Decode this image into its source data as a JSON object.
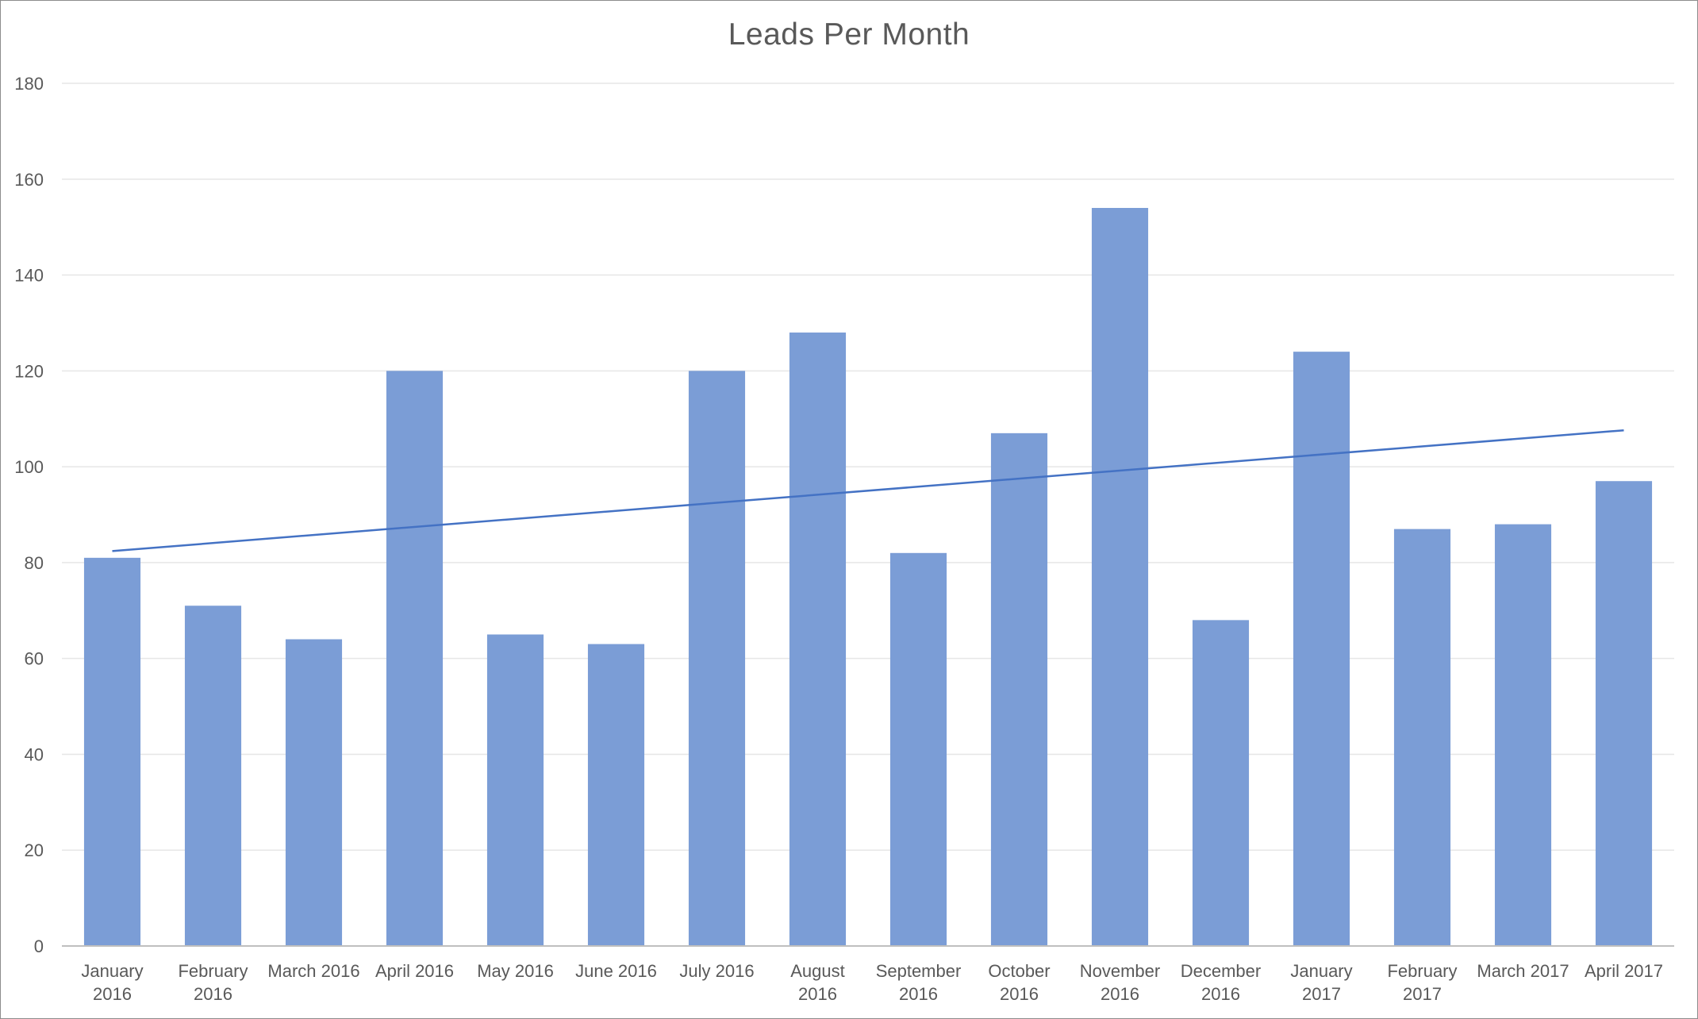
{
  "chart_data": {
    "type": "bar",
    "title": "Leads Per Month",
    "categories": [
      [
        "January",
        "2016"
      ],
      [
        "February",
        "2016"
      ],
      [
        "March 2016"
      ],
      [
        "April 2016"
      ],
      [
        "May 2016"
      ],
      [
        "June 2016"
      ],
      [
        "July 2016"
      ],
      [
        "August",
        "2016"
      ],
      [
        "September",
        "2016"
      ],
      [
        "October",
        "2016"
      ],
      [
        "November",
        "2016"
      ],
      [
        "December",
        "2016"
      ],
      [
        "January",
        "2017"
      ],
      [
        "February",
        "2017"
      ],
      [
        "March 2017"
      ],
      [
        "April 2017"
      ]
    ],
    "values": [
      81,
      71,
      64,
      120,
      65,
      63,
      120,
      128,
      82,
      107,
      154,
      68,
      124,
      87,
      88,
      97
    ],
    "trendline": {
      "type": "linear",
      "start": 82.4,
      "end": 107.6,
      "color": "#4472c4"
    },
    "ylim": [
      0,
      180
    ],
    "yticks": [
      0,
      20,
      40,
      60,
      80,
      100,
      120,
      140,
      160,
      180
    ],
    "grid": true,
    "bar_color": "#7b9dd6",
    "xlabel": "",
    "ylabel": ""
  }
}
